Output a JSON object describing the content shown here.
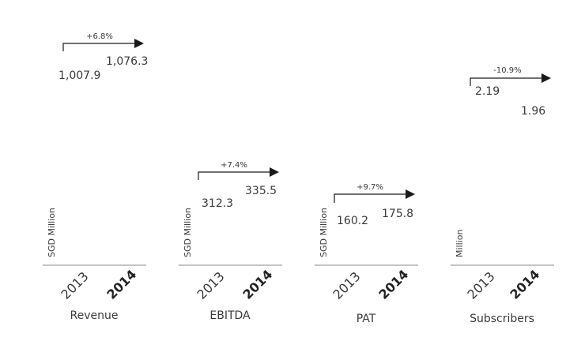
{
  "chart_data": [
    {
      "type": "bar",
      "title": "Revenue",
      "ylabel": "SGD Million",
      "categories": [
        "2013",
        "2014"
      ],
      "values": [
        1007.9,
        1076.3
      ],
      "value_labels": [
        "1,007.9",
        "1,076.3"
      ],
      "change_label": "+6.8%"
    },
    {
      "type": "bar",
      "title": "EBITDA",
      "ylabel": "SGD Million",
      "categories": [
        "2013",
        "2014"
      ],
      "values": [
        312.3,
        335.5
      ],
      "value_labels": [
        "312.3",
        "335.5"
      ],
      "change_label": "+7.4%"
    },
    {
      "type": "bar",
      "title": "PAT",
      "ylabel": "SGD Million",
      "categories": [
        "2013",
        "2014"
      ],
      "values": [
        160.2,
        175.8
      ],
      "value_labels": [
        "160.2",
        "175.8"
      ],
      "change_label": "+9.7%"
    },
    {
      "type": "bar",
      "title": "Subscribers",
      "ylabel": "Million",
      "categories": [
        "2013",
        "2014"
      ],
      "values": [
        2.19,
        1.96
      ],
      "value_labels": [
        "2.19",
        "1.96"
      ],
      "change_label": "-10.9%"
    }
  ],
  "colors": {
    "text": "#3a3a3a",
    "axis": "#8a8a8a",
    "arrow": "#1a1a1a"
  }
}
